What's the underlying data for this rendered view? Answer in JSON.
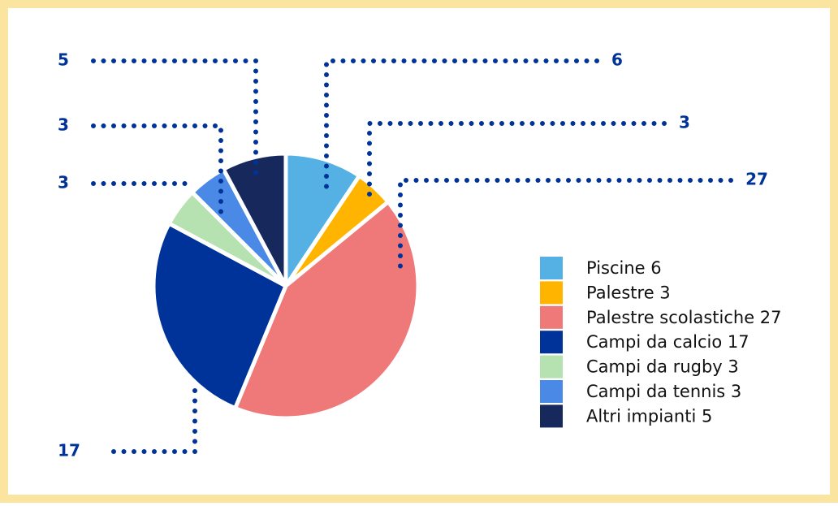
{
  "chart_data": {
    "type": "pie",
    "categories": [
      "Piscine 6",
      "Palestre 3",
      "Palestre scolastiche 27",
      "Campi da calcio 17",
      "Campi da rugby 3",
      "Campi da tennis 3",
      "Altri impianti 5"
    ],
    "values": [
      6,
      3,
      27,
      17,
      3,
      3,
      5
    ],
    "colors": [
      "#55b0e4",
      "#ffb500",
      "#ef7878",
      "#003399",
      "#b5e2b0",
      "#4a8ae6",
      "#16285c"
    ],
    "legend": "right"
  }
}
